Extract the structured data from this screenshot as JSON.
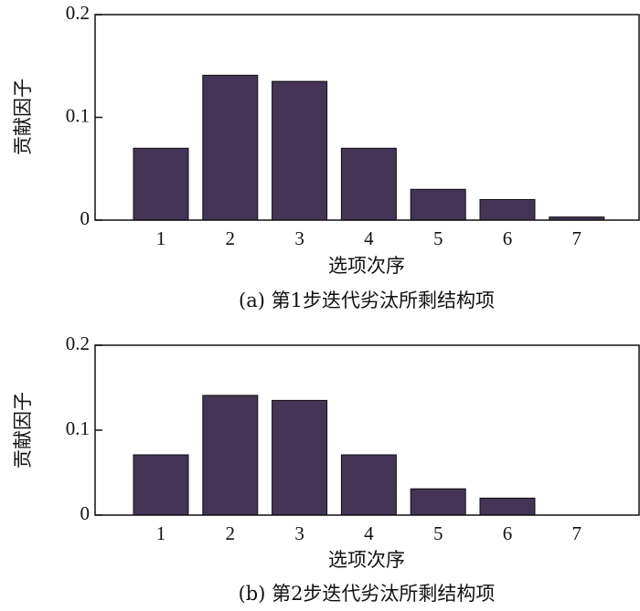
{
  "chart_data": [
    {
      "type": "bar",
      "caption": "(a) 第1步迭代劣汰所剩结构项",
      "xlabel": "选项次序",
      "ylabel": "贡献因子",
      "categories": [
        "1",
        "2",
        "3",
        "4",
        "5",
        "6",
        "7"
      ],
      "values": [
        0.07,
        0.141,
        0.135,
        0.07,
        0.03,
        0.02,
        0.003
      ],
      "ylim": [
        0,
        0.2
      ],
      "yticks": [
        "0",
        "0.1",
        "0.2"
      ],
      "bar_color": "#443456",
      "grid": false
    },
    {
      "type": "bar",
      "caption": "(b) 第2步迭代劣汰所剩结构项",
      "xlabel": "选项次序",
      "ylabel": "贡献因子",
      "categories": [
        "1",
        "2",
        "3",
        "4",
        "5",
        "6",
        "7"
      ],
      "values": [
        0.071,
        0.141,
        0.135,
        0.071,
        0.031,
        0.02,
        0
      ],
      "ylim": [
        0,
        0.2
      ],
      "yticks": [
        "0",
        "0.1",
        "0.2"
      ],
      "bar_color": "#443456",
      "grid": false
    }
  ]
}
